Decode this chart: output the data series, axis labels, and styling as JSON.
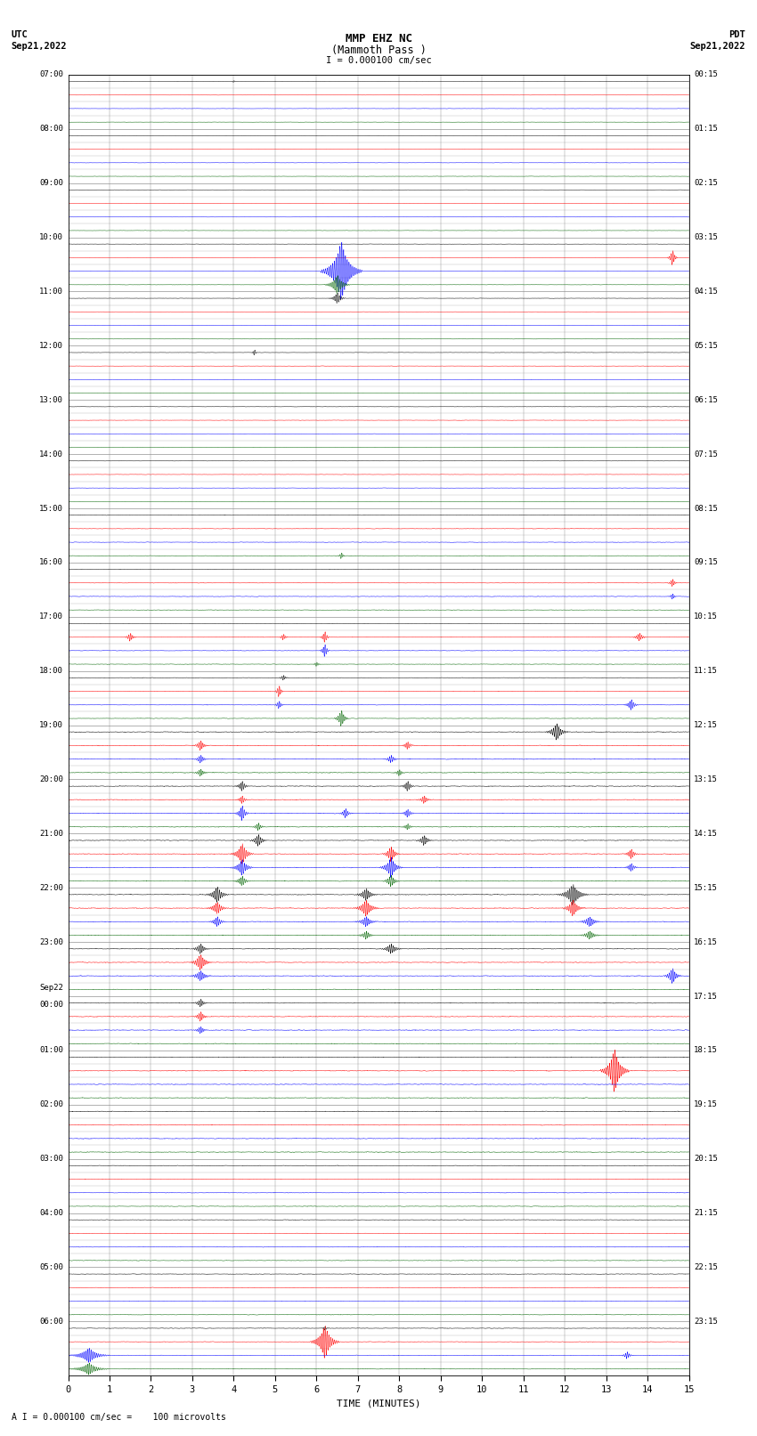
{
  "title_line1": "MMP EHZ NC",
  "title_line2": "(Mammoth Pass )",
  "title_line3": "I = 0.000100 cm/sec",
  "left_header_line1": "UTC",
  "left_header_line2": "Sep21,2022",
  "right_header_line1": "PDT",
  "right_header_line2": "Sep21,2022",
  "utc_labels": [
    "07:00",
    "",
    "",
    "08:00",
    "",
    "",
    "09:00",
    "",
    "",
    "10:00",
    "",
    "",
    "11:00",
    "",
    "",
    "12:00",
    "",
    "",
    "13:00",
    "",
    "",
    "14:00",
    "",
    "",
    "15:00",
    "",
    "",
    "16:00",
    "",
    "",
    "17:00",
    "",
    "",
    "18:00",
    "",
    "",
    "19:00",
    "",
    "",
    "20:00",
    "",
    "",
    "21:00",
    "",
    "",
    "22:00",
    "",
    "",
    "23:00",
    "",
    "",
    "Sep22",
    "00:00",
    "",
    "01:00",
    "",
    "",
    "02:00",
    "",
    "",
    "03:00",
    "",
    "",
    "04:00",
    "",
    "",
    "05:00",
    "",
    "",
    "06:00",
    "",
    ""
  ],
  "pdt_labels": [
    "00:15",
    "",
    "",
    "01:15",
    "",
    "",
    "02:15",
    "",
    "",
    "03:15",
    "",
    "",
    "04:15",
    "",
    "",
    "05:15",
    "",
    "",
    "06:15",
    "",
    "",
    "07:15",
    "",
    "",
    "08:15",
    "",
    "",
    "09:15",
    "",
    "",
    "10:15",
    "",
    "",
    "11:15",
    "",
    "",
    "12:15",
    "",
    "",
    "13:15",
    "",
    "",
    "14:15",
    "",
    "",
    "15:15",
    "",
    "",
    "16:15",
    "",
    "",
    "17:15",
    "",
    "",
    "18:15",
    "",
    "",
    "19:15",
    "",
    "",
    "20:15",
    "",
    "",
    "21:15",
    "",
    "",
    "22:15",
    "",
    "",
    "23:15",
    "",
    ""
  ],
  "xlabel": "TIME (MINUTES)",
  "footnote": "A I = 0.000100 cm/sec =    100 microvolts",
  "xlim": [
    0,
    15
  ],
  "xticks": [
    0,
    1,
    2,
    3,
    4,
    5,
    6,
    7,
    8,
    9,
    10,
    11,
    12,
    13,
    14,
    15
  ],
  "num_rows": 72,
  "trace_colors_cycle": [
    "black",
    "red",
    "blue",
    "darkgreen"
  ],
  "bg_color": "white",
  "grid_color": "#888888",
  "fig_width": 8.5,
  "fig_height": 16.13
}
